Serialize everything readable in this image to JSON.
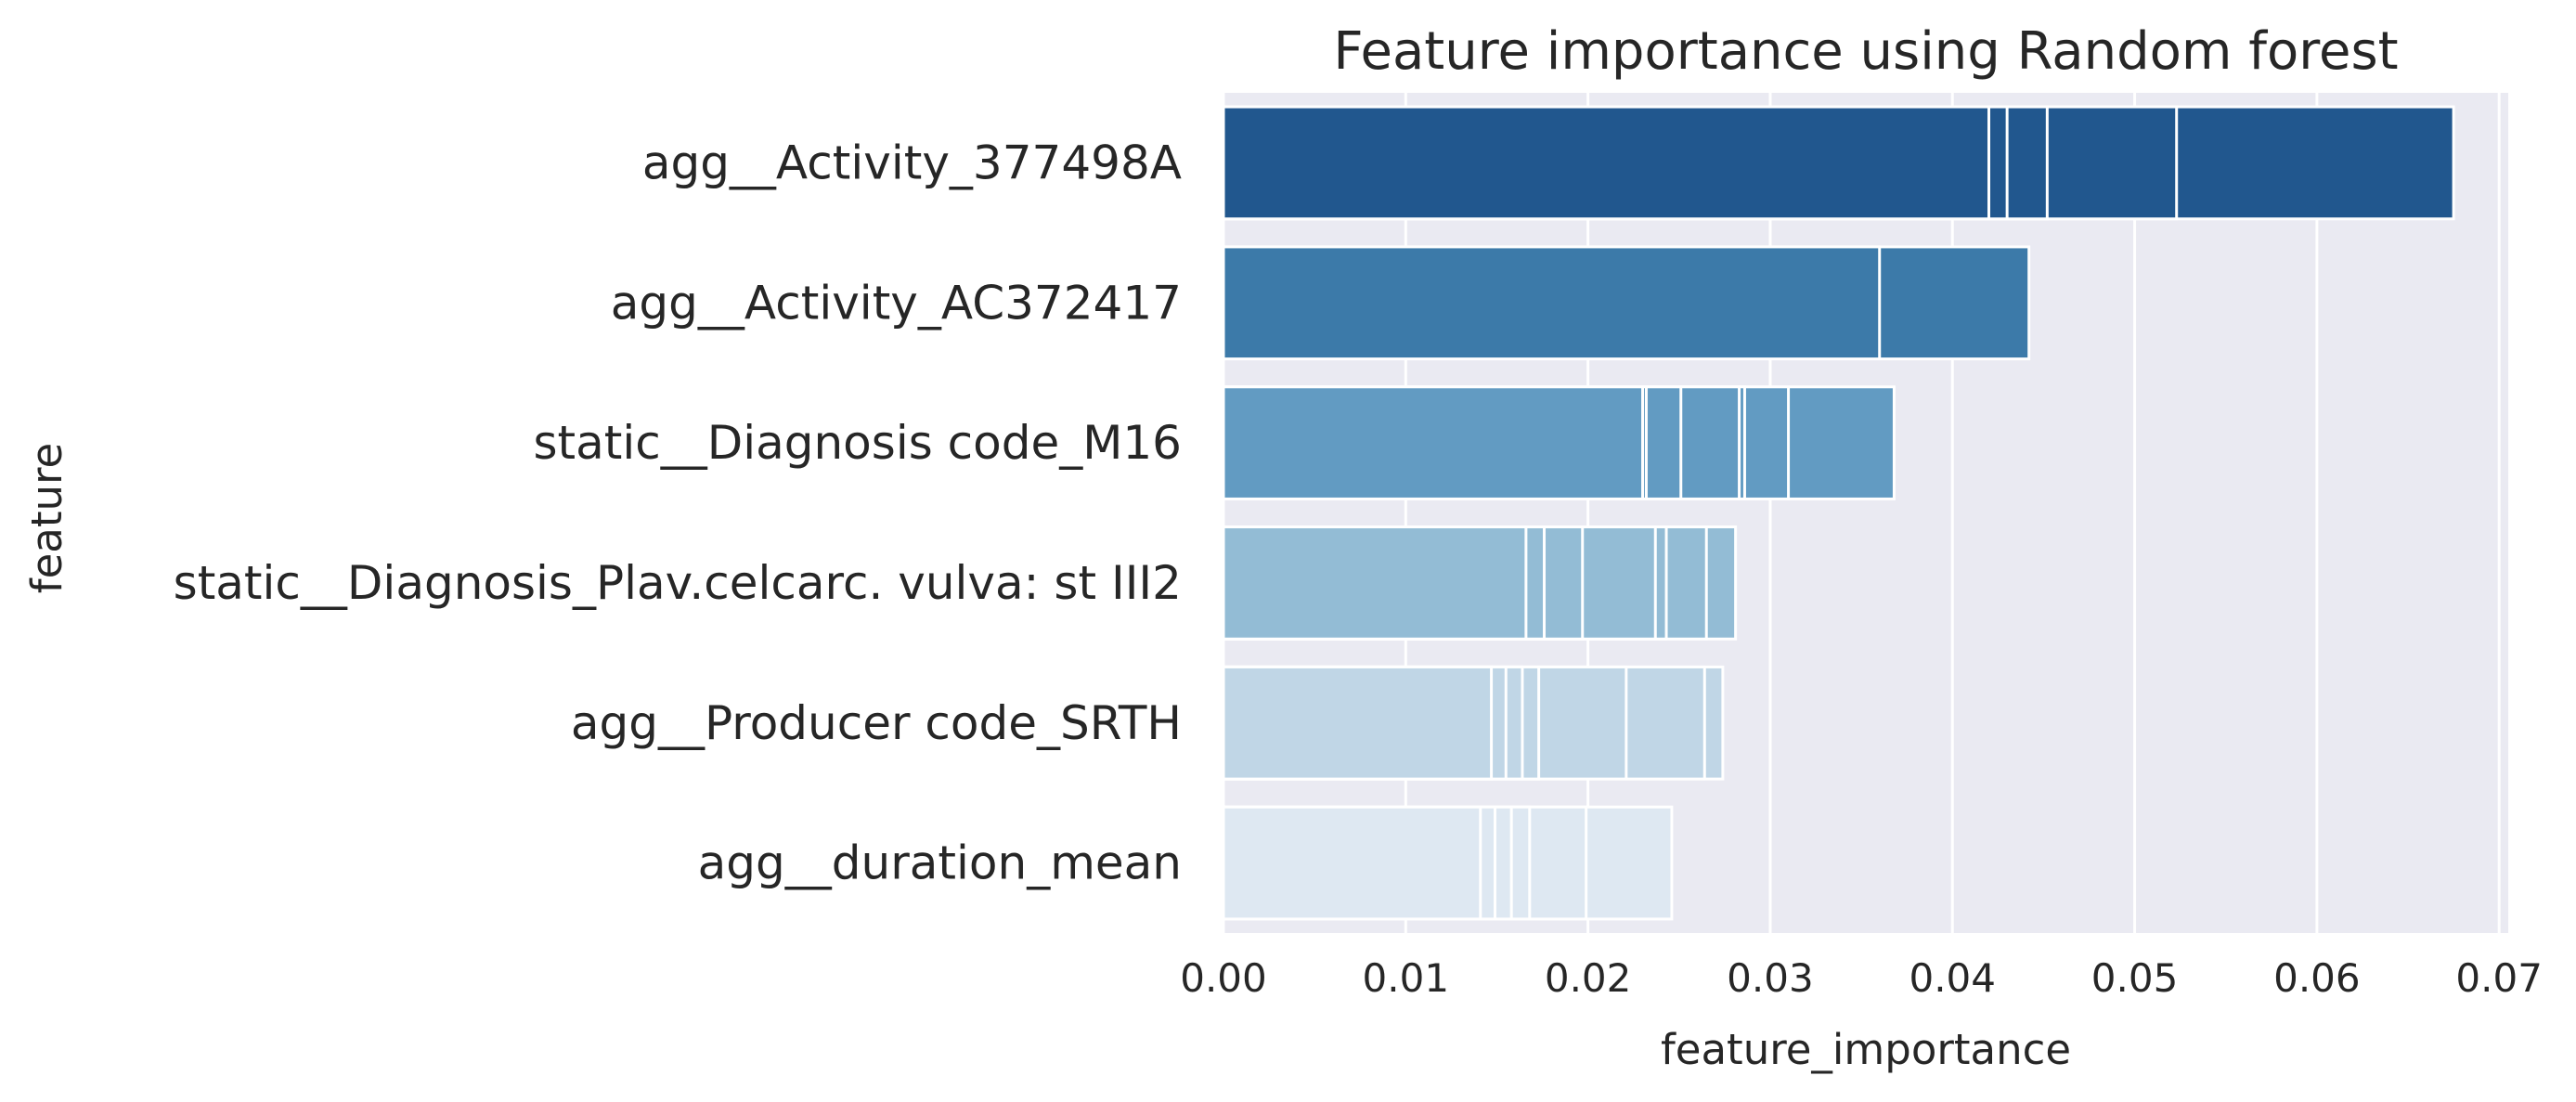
{
  "chart_data": {
    "type": "bar",
    "orientation": "horizontal",
    "title": "Feature importance using Random forest",
    "xlabel": "feature_importance",
    "ylabel": "feature",
    "xlim": [
      0,
      0.0705
    ],
    "x_ticks": [
      "0.00",
      "0.01",
      "0.02",
      "0.03",
      "0.04",
      "0.05",
      "0.06",
      "0.07"
    ],
    "grid": true,
    "legend": "none",
    "categories": [
      "agg__Activity_377498A",
      "agg__Activity_AC372417",
      "static__Diagnosis code_M16",
      "static__Diagnosis_Plav.celcarc. vulva: st III2",
      "agg__Producer code_SRTH",
      "agg__duration_mean"
    ],
    "values": [
      0.0675,
      0.0442,
      0.0368,
      0.0281,
      0.0274,
      0.0246
    ],
    "overlapping_segment_ends": [
      [
        0.042,
        0.043,
        0.0452,
        0.0523,
        0.0675
      ],
      [
        0.036,
        0.0442
      ],
      [
        0.023,
        0.0232,
        0.0251,
        0.0283,
        0.0286,
        0.031,
        0.0368
      ],
      [
        0.0166,
        0.0176,
        0.0197,
        0.0237,
        0.0243,
        0.0265,
        0.0281
      ],
      [
        0.0147,
        0.0155,
        0.0164,
        0.0173,
        0.0221,
        0.0264,
        0.0274
      ],
      [
        0.0141,
        0.0149,
        0.0158,
        0.0168,
        0.0199,
        0.0246
      ]
    ],
    "colors": {
      "bars": [
        "#21578e",
        "#3c7aa9",
        "#629bc2",
        "#93bcd5",
        "#c0d6e6",
        "#dee8f2"
      ],
      "plot_background": "#eaeaf2",
      "grid": "#ffffff",
      "text": "#262626"
    }
  }
}
